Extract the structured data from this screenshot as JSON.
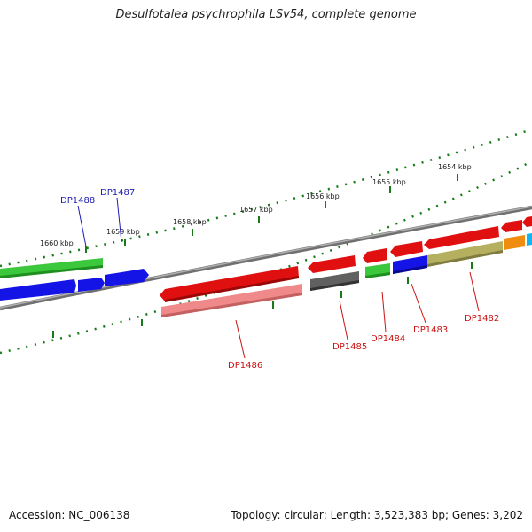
{
  "title": "Desulfotalea psychrophila LSv54, complete genome",
  "footer": {
    "accession": "Accession: NC_006138",
    "topology": "Topology: circular; Length: 3,523,383 bp; Genes: 3,202"
  },
  "scale_labels": [
    "1660 kbp",
    "1659 kbp",
    "1658 kbp",
    "1657 kbp",
    "1656 kbp",
    "1655 kbp",
    "1654 kbp"
  ],
  "gene_labels": [
    {
      "text": "DP1488",
      "color": "#1c1cb4"
    },
    {
      "text": "DP1487",
      "color": "#1c1cb4"
    },
    {
      "text": "DP1486",
      "color": "#cc1111"
    },
    {
      "text": "DP1485",
      "color": "#cc1111"
    },
    {
      "text": "DP1484",
      "color": "#cc1111"
    },
    {
      "text": "DP1483",
      "color": "#cc1111"
    },
    {
      "text": "DP1482",
      "color": "#cc1111"
    }
  ],
  "colors": {
    "backbone": "#808080",
    "ticks": "#1a7a1a",
    "red": "#e01010",
    "pink": "#f08a8a",
    "green": "#3cc83c",
    "blue": "#1414e6",
    "gray": "#606060",
    "olive": "#b4b060",
    "orange": "#f08c10",
    "cyan": "#10b4f0"
  }
}
